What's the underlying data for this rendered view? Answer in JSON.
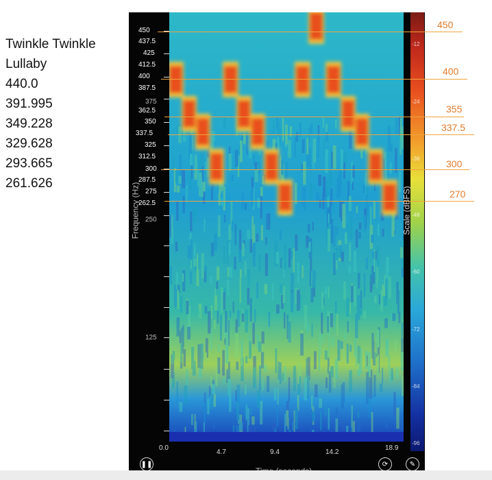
{
  "note_list": [
    "Twinkle Twinkle",
    "Lullaby",
    "440.0",
    "391.995",
    "349.228",
    "329.628",
    "293.665",
    "261.626"
  ],
  "frequency_axis": {
    "title": "Frequency (Hz)",
    "ticks": [
      "450",
      "437.5",
      "425",
      "412.5",
      "400",
      "387.5",
      "375",
      "362.5",
      "350",
      "337.5",
      "325",
      "312.5",
      "300",
      "287.5",
      "275",
      "262.5",
      "250",
      "125"
    ]
  },
  "time_axis": {
    "title": "Time (seconds)",
    "ticks": [
      "0.0",
      "4.7",
      "9.4",
      "14.2",
      "18.9"
    ]
  },
  "scale_bar": {
    "title": "Scale (dBFS)",
    "ticks": [
      "-12",
      "-24",
      "-36",
      "-48",
      "-60",
      "-72",
      "-84",
      "-96"
    ]
  },
  "annotations": [
    "450",
    "400",
    "355",
    "337.5",
    "300",
    "270"
  ],
  "controls": {
    "pause_icon": "pause-icon",
    "refresh_icon": "refresh-icon",
    "edit_icon": "pen-icon"
  },
  "colors": {
    "annotation_line": "#f0a43c",
    "annotation_text": "#e07a2c",
    "spectrogram_base": "#1fa7c4",
    "note_hot": "#e8501f"
  }
}
